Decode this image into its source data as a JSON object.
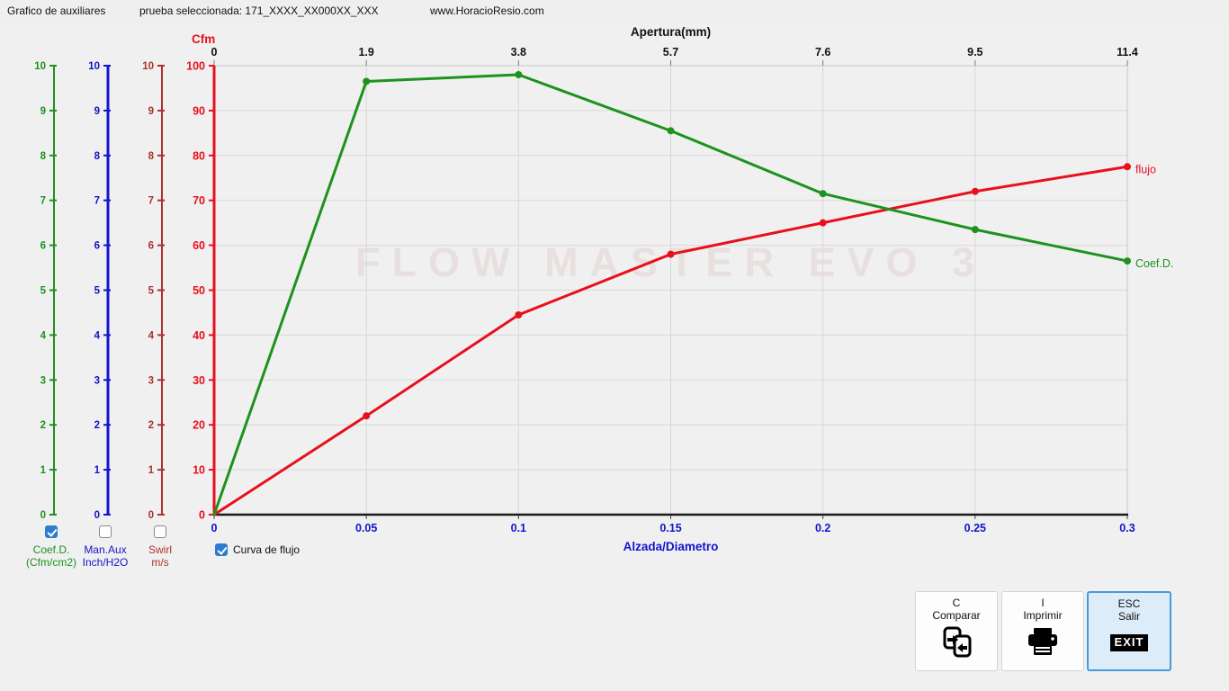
{
  "header": {
    "title": "Grafico de auxiliares",
    "selected_test": "prueba seleccionada: 171_XXXX_XX000XX_XXX",
    "website": "www.HoracioResio.com"
  },
  "watermark": "FLOW MASTER EVO 3",
  "colors": {
    "green": "#1d921d",
    "red": "#e8101c",
    "blue": "#1414cc",
    "dark_red": "#a8342c",
    "checkbox_blue": "#2d7ccd",
    "grid": "#d8d8d8",
    "plot_border": "#c9c9c9",
    "axis_black": "#1a1a1a",
    "tick_text": "#111111"
  },
  "aux_axes": [
    {
      "id": "coefd",
      "color": "#1d921d",
      "min": 0,
      "max": 10,
      "checked": true,
      "label_line1": "Coef.D.",
      "label_line2": "(Cfm/cm2)"
    },
    {
      "id": "manaux",
      "color": "#1414cc",
      "min": 0,
      "max": 10,
      "checked": false,
      "label_line1": "Man.Aux",
      "label_line2": "Inch/H2O"
    },
    {
      "id": "swirl",
      "color": "#a8342c",
      "min": 0,
      "max": 10,
      "checked": false,
      "label_line1": "Swirl",
      "label_line2": "m/s"
    }
  ],
  "chart_data": {
    "type": "line",
    "top_axis": {
      "label": "Apertura(mm)",
      "tick_labels": [
        "0",
        "1.9",
        "3.8",
        "5.7",
        "7.6",
        "9.5",
        "11.4"
      ]
    },
    "bottom_axis": {
      "label": "Alzada/Diametro",
      "tick_labels": [
        "0",
        "0.05",
        "0.1",
        "0.15",
        "0.2",
        "0.25",
        "0.3"
      ],
      "max": 0.3
    },
    "left_axis": {
      "label": "Cfm",
      "min": 0,
      "max": 100,
      "tick_step": 10
    },
    "x": [
      0,
      0.05,
      0.1,
      0.15,
      0.2,
      0.25,
      0.3
    ],
    "series": [
      {
        "name": "flujo",
        "color": "#e8101c",
        "values": [
          0,
          22,
          44.5,
          58,
          65,
          72,
          77.5
        ]
      },
      {
        "name": "Coef.D.",
        "color": "#1d921d",
        "values": [
          0,
          96.5,
          98,
          85.5,
          71.5,
          63.5,
          56.5
        ]
      }
    ],
    "grid": true,
    "legend_position": "end-of-line"
  },
  "flow_checkbox": {
    "label": "Curva de flujo",
    "checked": true
  },
  "buttons": [
    {
      "key": "C",
      "label": "Comparar",
      "icon": "compare-icon",
      "selected": false,
      "badge": ""
    },
    {
      "key": "I",
      "label": "Imprimir",
      "icon": "printer-icon",
      "selected": false,
      "badge": ""
    },
    {
      "key": "ESC",
      "label": "Salir",
      "icon": "exit-badge",
      "selected": true,
      "badge": "EXIT"
    }
  ]
}
